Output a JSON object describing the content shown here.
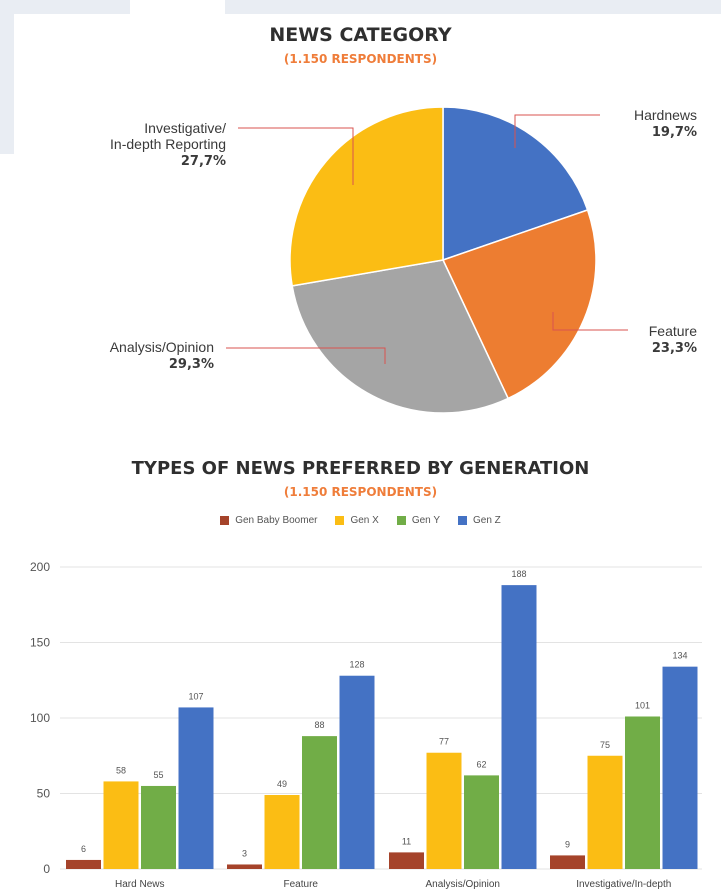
{
  "chart_data": [
    {
      "type": "pie",
      "title": "NEWS CATEGORY",
      "subtitle": "(1.150 RESPONDENTS)",
      "slices": [
        {
          "label": "Hardnews",
          "value_text": "19,7%",
          "value": 19.7,
          "color": "#4472c4"
        },
        {
          "label": "Feature",
          "value_text": "23,3%",
          "value": 23.3,
          "color": "#ed7d31"
        },
        {
          "label": "Analysis/Opinion",
          "value_text": "29,3%",
          "value": 29.3,
          "color": "#a5a5a5"
        },
        {
          "label": "Investigative/ In-depth Reporting",
          "label_lines": [
            "Investigative/",
            "In-depth Reporting"
          ],
          "value_text": "27,7%",
          "value": 27.7,
          "color": "#fbbd14"
        }
      ]
    },
    {
      "type": "bar",
      "title": "TYPES OF NEWS PREFERRED BY GENERATION",
      "subtitle": "(1.150 RESPONDENTS)",
      "categories": [
        "Hard News",
        "Feature",
        "Analysis/Opinion",
        "Investigative/In-depth"
      ],
      "series": [
        {
          "name": "Gen Baby Boomer",
          "color": "#a5432a",
          "values": [
            6,
            3,
            11,
            9
          ]
        },
        {
          "name": "Gen X",
          "color": "#fbbd14",
          "values": [
            58,
            49,
            77,
            75
          ]
        },
        {
          "name": "Gen Y",
          "color": "#71ad47",
          "values": [
            55,
            88,
            62,
            101
          ]
        },
        {
          "name": "Gen Z",
          "color": "#4472c4",
          "values": [
            107,
            128,
            188,
            134
          ]
        }
      ],
      "ylim": [
        0,
        200
      ],
      "yticks": [
        0,
        50,
        100,
        150,
        200
      ],
      "grid": true,
      "legend": "top-center"
    }
  ]
}
